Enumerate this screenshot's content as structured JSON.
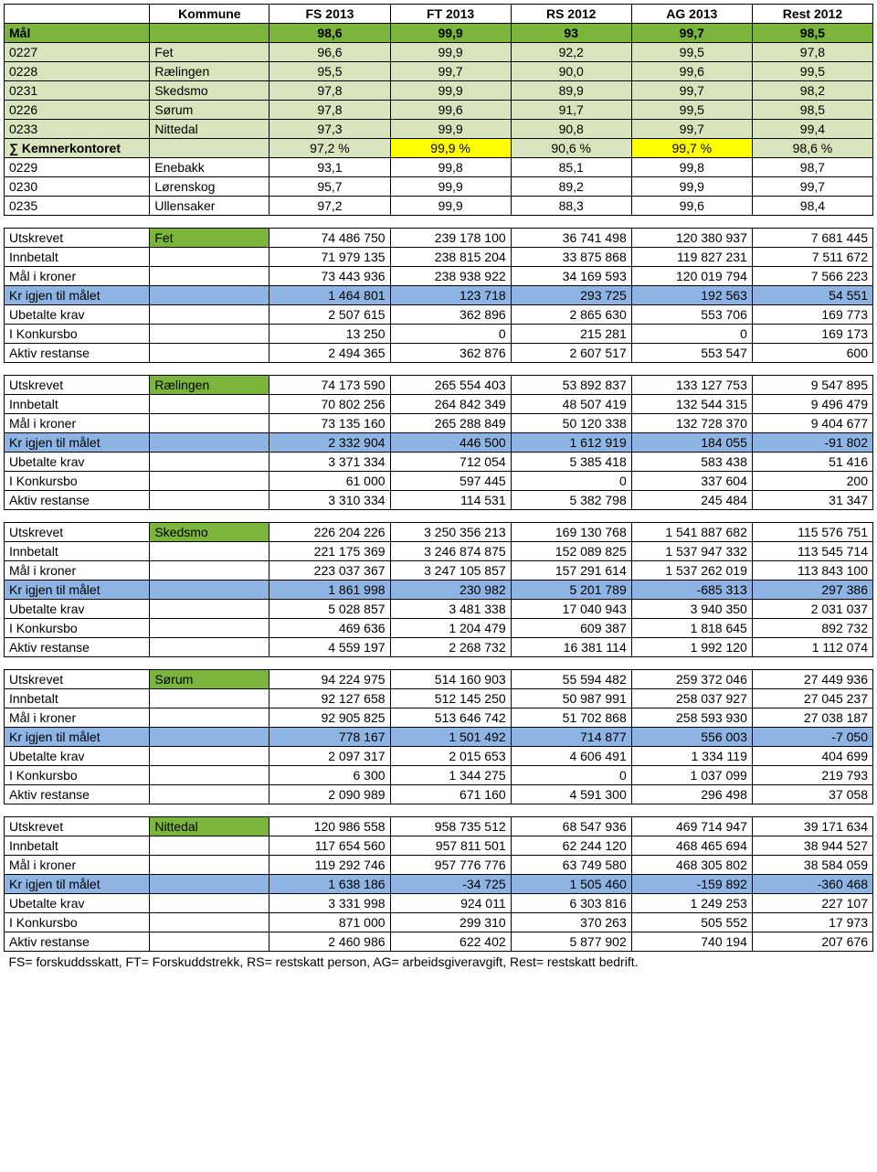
{
  "headers": [
    "",
    "Kommune",
    "FS 2013",
    "FT 2013",
    "RS 2012",
    "AG 2013",
    "Rest 2012"
  ],
  "mal": {
    "label": "Mål",
    "v": [
      "98,6",
      "99,9",
      "93",
      "99,7",
      "98,5"
    ]
  },
  "muni": [
    {
      "code": "0227",
      "name": "Fet",
      "v": [
        "96,6",
        "99,9",
        "92,2",
        "99,5",
        "97,8"
      ],
      "cls": "green-light"
    },
    {
      "code": "0228",
      "name": "Rælingen",
      "v": [
        "95,5",
        "99,7",
        "90,0",
        "99,6",
        "99,5"
      ],
      "cls": "green-light"
    },
    {
      "code": "0231",
      "name": "Skedsmo",
      "v": [
        "97,8",
        "99,9",
        "89,9",
        "99,7",
        "98,2"
      ],
      "cls": "green-light"
    },
    {
      "code": "0226",
      "name": "Sørum",
      "v": [
        "97,8",
        "99,6",
        "91,7",
        "99,5",
        "98,5"
      ],
      "cls": "green-light"
    },
    {
      "code": "0233",
      "name": "Nittedal",
      "v": [
        "97,3",
        "99,9",
        "90,8",
        "99,7",
        "99,4"
      ],
      "cls": "green-light"
    }
  ],
  "kemner": {
    "label": "∑ Kemnerkontoret",
    "v": [
      "97,2 %",
      "99,9 %",
      "90,6 %",
      "99,7 %",
      "98,6 %"
    ],
    "hl": [
      false,
      true,
      false,
      true,
      false
    ]
  },
  "extra": [
    {
      "code": "0229",
      "name": "Enebakk",
      "v": [
        "93,1",
        "99,8",
        "85,1",
        "99,8",
        "98,7"
      ]
    },
    {
      "code": "0230",
      "name": "Lørenskog",
      "v": [
        "95,7",
        "99,9",
        "89,2",
        "99,9",
        "99,7"
      ]
    },
    {
      "code": "0235",
      "name": "Ullensaker",
      "v": [
        "97,2",
        "99,9",
        "88,3",
        "99,6",
        "98,4"
      ]
    }
  ],
  "rowLabels": [
    "Utskrevet",
    "Innbetalt",
    "Mål i kroner",
    "Kr igjen til målet",
    "Ubetalte krav",
    "I Konkursbo",
    "Aktiv restanse"
  ],
  "blocks": [
    {
      "name": "Fet",
      "rows": [
        [
          "74 486 750",
          "239 178 100",
          "36 741 498",
          "120 380 937",
          "7 681 445"
        ],
        [
          "71 979 135",
          "238 815 204",
          "33 875 868",
          "119 827 231",
          "7 511 672"
        ],
        [
          "73 443 936",
          "238 938 922",
          "34 169 593",
          "120 019 794",
          "7 566 223"
        ],
        [
          "1 464 801",
          "123 718",
          "293 725",
          "192 563",
          "54 551"
        ],
        [
          "2 507 615",
          "362 896",
          "2 865 630",
          "553 706",
          "169 773"
        ],
        [
          "13 250",
          "0",
          "215 281",
          "0",
          "169 173"
        ],
        [
          "2 494 365",
          "362 876",
          "2 607 517",
          "553 547",
          "600"
        ]
      ]
    },
    {
      "name": "Rælingen",
      "rows": [
        [
          "74 173 590",
          "265 554 403",
          "53 892 837",
          "133 127 753",
          "9 547 895"
        ],
        [
          "70 802 256",
          "264 842 349",
          "48 507 419",
          "132 544 315",
          "9 496 479"
        ],
        [
          "73 135 160",
          "265 288 849",
          "50 120 338",
          "132 728 370",
          "9 404 677"
        ],
        [
          "2 332 904",
          "446 500",
          "1 612 919",
          "184 055",
          "-91 802"
        ],
        [
          "3 371 334",
          "712 054",
          "5 385 418",
          "583 438",
          "51 416"
        ],
        [
          "61 000",
          "597 445",
          "0",
          "337 604",
          "200"
        ],
        [
          "3 310 334",
          "114 531",
          "5 382 798",
          "245 484",
          "31 347"
        ]
      ]
    },
    {
      "name": "Skedsmo",
      "rows": [
        [
          "226 204 226",
          "3 250 356 213",
          "169 130 768",
          "1 541 887 682",
          "115 576 751"
        ],
        [
          "221 175 369",
          "3 246 874 875",
          "152 089 825",
          "1 537 947 332",
          "113 545 714"
        ],
        [
          "223 037 367",
          "3 247 105 857",
          "157 291 614",
          "1 537 262 019",
          "113 843 100"
        ],
        [
          "1 861 998",
          "230 982",
          "5 201 789",
          "-685 313",
          "297 386"
        ],
        [
          "5 028 857",
          "3 481 338",
          "17 040 943",
          "3 940 350",
          "2 031 037"
        ],
        [
          "469 636",
          "1 204 479",
          "609 387",
          "1 818 645",
          "892 732"
        ],
        [
          "4 559 197",
          "2 268 732",
          "16 381 114",
          "1 992 120",
          "1 112 074"
        ]
      ]
    },
    {
      "name": "Sørum",
      "rows": [
        [
          "94 224 975",
          "514 160 903",
          "55 594 482",
          "259 372 046",
          "27 449 936"
        ],
        [
          "92 127 658",
          "512 145 250",
          "50 987 991",
          "258 037 927",
          "27 045 237"
        ],
        [
          "92 905 825",
          "513 646 742",
          "51 702 868",
          "258 593 930",
          "27 038 187"
        ],
        [
          "778 167",
          "1 501 492",
          "714 877",
          "556 003",
          "-7 050"
        ],
        [
          "2 097 317",
          "2 015 653",
          "4 606 491",
          "1 334 119",
          "404 699"
        ],
        [
          "6 300",
          "1 344 275",
          "0",
          "1 037 099",
          "219 793"
        ],
        [
          "2 090 989",
          "671 160",
          "4 591 300",
          "296 498",
          "37 058"
        ]
      ]
    },
    {
      "name": "Nittedal",
      "rows": [
        [
          "120 986 558",
          "958 735 512",
          "68 547 936",
          "469 714 947",
          "39 171 634"
        ],
        [
          "117 654 560",
          "957 811 501",
          "62 244 120",
          "468 465 694",
          "38 944 527"
        ],
        [
          "119 292 746",
          "957 776 776",
          "63 749 580",
          "468 305 802",
          "38 584 059"
        ],
        [
          "1 638 186",
          "-34 725",
          "1 505 460",
          "-159 892",
          "-360 468"
        ],
        [
          "3 331 998",
          "924 011",
          "6 303 816",
          "1 249 253",
          "227 107"
        ],
        [
          "871 000",
          "299 310",
          "370 263",
          "505 552",
          "17 973"
        ],
        [
          "2 460 986",
          "622 402",
          "5 877 902",
          "740 194",
          "207 676"
        ]
      ]
    }
  ],
  "footnote": "FS= forskuddsskatt, FT= Forskuddstrekk, RS= restskatt person, AG= arbeidsgiveravgift, Rest= restskatt bedrift."
}
